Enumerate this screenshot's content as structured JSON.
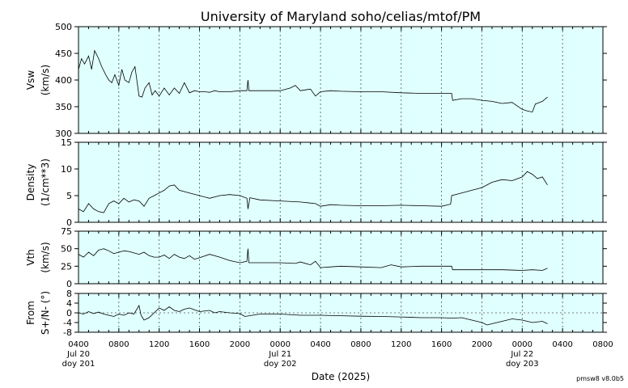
{
  "chart_data": {
    "type": "line",
    "title": "University of Maryland  soho/celias/mtof/PM",
    "xlabel": "Date (2025)",
    "footer": "pmsw8 v8.0b5",
    "x_unit": "hours since 2025-07-20 04:00 UT",
    "xlim": [
      0,
      52
    ],
    "x_ticks": [
      {
        "h": 0,
        "line1": "0400",
        "line2": "Jul 20",
        "line3": "doy 201"
      },
      {
        "h": 4,
        "line1": "0800",
        "line2": "",
        "line3": ""
      },
      {
        "h": 8,
        "line1": "1200",
        "line2": "",
        "line3": ""
      },
      {
        "h": 12,
        "line1": "1600",
        "line2": "",
        "line3": ""
      },
      {
        "h": 16,
        "line1": "2000",
        "line2": "",
        "line3": ""
      },
      {
        "h": 20,
        "line1": "0000",
        "line2": "Jul 21",
        "line3": "doy 202"
      },
      {
        "h": 24,
        "line1": "0400",
        "line2": "",
        "line3": ""
      },
      {
        "h": 28,
        "line1": "0800",
        "line2": "",
        "line3": ""
      },
      {
        "h": 32,
        "line1": "1200",
        "line2": "",
        "line3": ""
      },
      {
        "h": 36,
        "line1": "1600",
        "line2": "",
        "line3": ""
      },
      {
        "h": 40,
        "line1": "2000",
        "line2": "",
        "line3": ""
      },
      {
        "h": 44,
        "line1": "0000",
        "line2": "Jul 22",
        "line3": "doy 203"
      },
      {
        "h": 48,
        "line1": "0400",
        "line2": "",
        "line3": ""
      },
      {
        "h": 52,
        "line1": "0800",
        "line2": "",
        "line3": ""
      }
    ],
    "panels": [
      {
        "name": "vsw",
        "ylabel": "Vsw",
        "yunit": "(km/s)",
        "ylim": [
          300,
          500
        ],
        "yticks": [
          300,
          350,
          400,
          450,
          500
        ],
        "zero_line": false,
        "x": [
          0,
          0.3,
          0.6,
          1.0,
          1.3,
          1.6,
          2.0,
          2.3,
          2.7,
          3.0,
          3.3,
          3.6,
          4.0,
          4.3,
          4.6,
          5.0,
          5.3,
          5.6,
          6.0,
          6.3,
          6.6,
          7.0,
          7.3,
          7.6,
          8.0,
          8.5,
          9.0,
          9.5,
          10.0,
          10.5,
          11.0,
          11.5,
          12.0,
          12.5,
          13.0,
          13.5,
          14.0,
          15.0,
          16.0,
          16.7,
          16.8,
          16.9,
          18.0,
          19.0,
          20.0,
          21.0,
          21.5,
          22.0,
          23.0,
          23.5,
          24.0,
          25.0,
          26.0,
          28.0,
          30.0,
          32.0,
          34.0,
          36.0,
          37.0,
          37.1,
          38.0,
          39.0,
          40.0,
          41.0,
          42.0,
          43.0,
          44.0,
          44.5,
          45.0,
          45.3,
          46.0,
          46.5
        ],
        "y": [
          420,
          440,
          430,
          445,
          420,
          455,
          440,
          425,
          410,
          400,
          395,
          410,
          390,
          420,
          400,
          395,
          415,
          425,
          370,
          368,
          385,
          395,
          372,
          380,
          370,
          385,
          372,
          385,
          375,
          395,
          376,
          380,
          378,
          378,
          377,
          380,
          378,
          378,
          380,
          380,
          400,
          380,
          380,
          380,
          380,
          385,
          390,
          380,
          383,
          370,
          378,
          380,
          379,
          378,
          378,
          376,
          375,
          375,
          375,
          362,
          365,
          365,
          362,
          360,
          356,
          358,
          345,
          342,
          340,
          355,
          360,
          368
        ]
      },
      {
        "name": "density",
        "ylabel": "Density",
        "yunit": "(1/cm**3)",
        "ylim": [
          0,
          15
        ],
        "yticks": [
          0,
          5,
          10,
          15
        ],
        "zero_line": false,
        "x": [
          0,
          0.5,
          1.0,
          1.5,
          2.0,
          2.5,
          3.0,
          3.5,
          4.0,
          4.5,
          5.0,
          5.5,
          6.0,
          6.5,
          7.0,
          7.5,
          8.0,
          8.5,
          9.0,
          9.5,
          10.0,
          11.0,
          12.0,
          13.0,
          14.0,
          15.0,
          16.0,
          16.7,
          16.8,
          17.0,
          18.0,
          20.0,
          22.0,
          23.5,
          24.0,
          25.0,
          26.0,
          28.0,
          30.0,
          32.0,
          34.0,
          36.0,
          36.9,
          37.0,
          38.0,
          39.0,
          40.0,
          41.0,
          42.0,
          43.0,
          44.0,
          44.5,
          45.0,
          45.5,
          46.0,
          46.5
        ],
        "y": [
          2.5,
          2.0,
          3.5,
          2.5,
          2.0,
          1.8,
          3.5,
          4.0,
          3.5,
          4.5,
          3.8,
          4.2,
          4.0,
          3.0,
          4.5,
          5.0,
          5.5,
          6.0,
          6.8,
          7.0,
          6.0,
          5.5,
          5.0,
          4.5,
          5.0,
          5.2,
          5.0,
          4.5,
          2.5,
          4.6,
          4.2,
          4.0,
          3.8,
          3.5,
          3.0,
          3.3,
          3.2,
          3.1,
          3.1,
          3.2,
          3.1,
          3.0,
          3.4,
          5.0,
          5.5,
          6.0,
          6.5,
          7.5,
          8.0,
          7.8,
          8.5,
          9.5,
          9.0,
          8.2,
          8.5,
          7.0
        ]
      },
      {
        "name": "vth",
        "ylabel": "Vth",
        "yunit": "(km/s)",
        "ylim": [
          0,
          75
        ],
        "yticks": [
          0,
          25,
          50,
          75
        ],
        "zero_line": false,
        "x": [
          0,
          0.5,
          1.0,
          1.5,
          2.0,
          2.5,
          3.0,
          3.5,
          4.0,
          4.5,
          5.0,
          5.5,
          6.0,
          6.5,
          7.0,
          7.5,
          8.0,
          8.5,
          9.0,
          9.5,
          10.0,
          10.5,
          11.0,
          11.5,
          12.0,
          13.0,
          14.0,
          15.0,
          16.0,
          16.7,
          16.8,
          16.9,
          18.0,
          20.0,
          21.5,
          22.0,
          23.0,
          23.5,
          24.0,
          25.0,
          26.0,
          28.0,
          30.0,
          31.0,
          32.0,
          34.0,
          36.0,
          37.0,
          37.1,
          38.0,
          40.0,
          42.0,
          44.0,
          45.0,
          46.0,
          46.5
        ],
        "y": [
          42,
          38,
          45,
          40,
          48,
          50,
          47,
          43,
          45,
          47,
          46,
          44,
          42,
          45,
          40,
          38,
          38,
          41,
          36,
          42,
          38,
          36,
          40,
          35,
          37,
          42,
          38,
          33,
          30,
          32,
          50,
          30,
          30,
          30,
          29,
          31,
          27,
          32,
          23,
          24,
          25,
          24,
          23,
          27,
          24,
          25,
          25,
          25,
          20,
          20,
          20,
          20,
          19,
          20,
          19,
          22
        ]
      },
      {
        "name": "from",
        "ylabel": "From",
        "yunit": "S+/N- (°)",
        "ylim": [
          -8,
          8
        ],
        "yticks": [
          -8,
          -4,
          0,
          4,
          8
        ],
        "zero_line": true,
        "x": [
          0,
          0.5,
          1.0,
          1.5,
          2.0,
          2.5,
          3.0,
          3.5,
          4.0,
          4.5,
          5.0,
          5.5,
          6.0,
          6.2,
          6.5,
          7.0,
          8.0,
          8.5,
          9.0,
          9.5,
          10.0,
          10.5,
          11.0,
          12.0,
          13.0,
          13.5,
          14.0,
          15.0,
          16.0,
          16.5,
          18.0,
          20.0,
          22.0,
          24.0,
          26.0,
          28.0,
          30.0,
          32.0,
          34.0,
          36.0,
          37.0,
          38.0,
          39.0,
          40.0,
          40.5,
          41.0,
          42.0,
          43.0,
          44.0,
          45.0,
          46.0,
          46.5
        ],
        "y": [
          0,
          -0.5,
          0.5,
          -0.3,
          0.3,
          -0.5,
          -1.0,
          -1.5,
          -0.5,
          -1.0,
          0,
          -0.5,
          3.0,
          -1.0,
          -3.0,
          -2.0,
          2.0,
          1.0,
          2.5,
          1.0,
          0.5,
          1.5,
          2.0,
          0.5,
          1.0,
          0.0,
          0.5,
          0,
          -0.3,
          -1.5,
          -0.5,
          -0.5,
          -1.0,
          -1.0,
          -1.2,
          -1.4,
          -1.5,
          -1.7,
          -2.0,
          -2.0,
          -2.2,
          -2.0,
          -3.0,
          -4.0,
          -5.0,
          -4.5,
          -3.5,
          -2.5,
          -3.0,
          -4.0,
          -3.5,
          -4.5
        ]
      }
    ]
  }
}
